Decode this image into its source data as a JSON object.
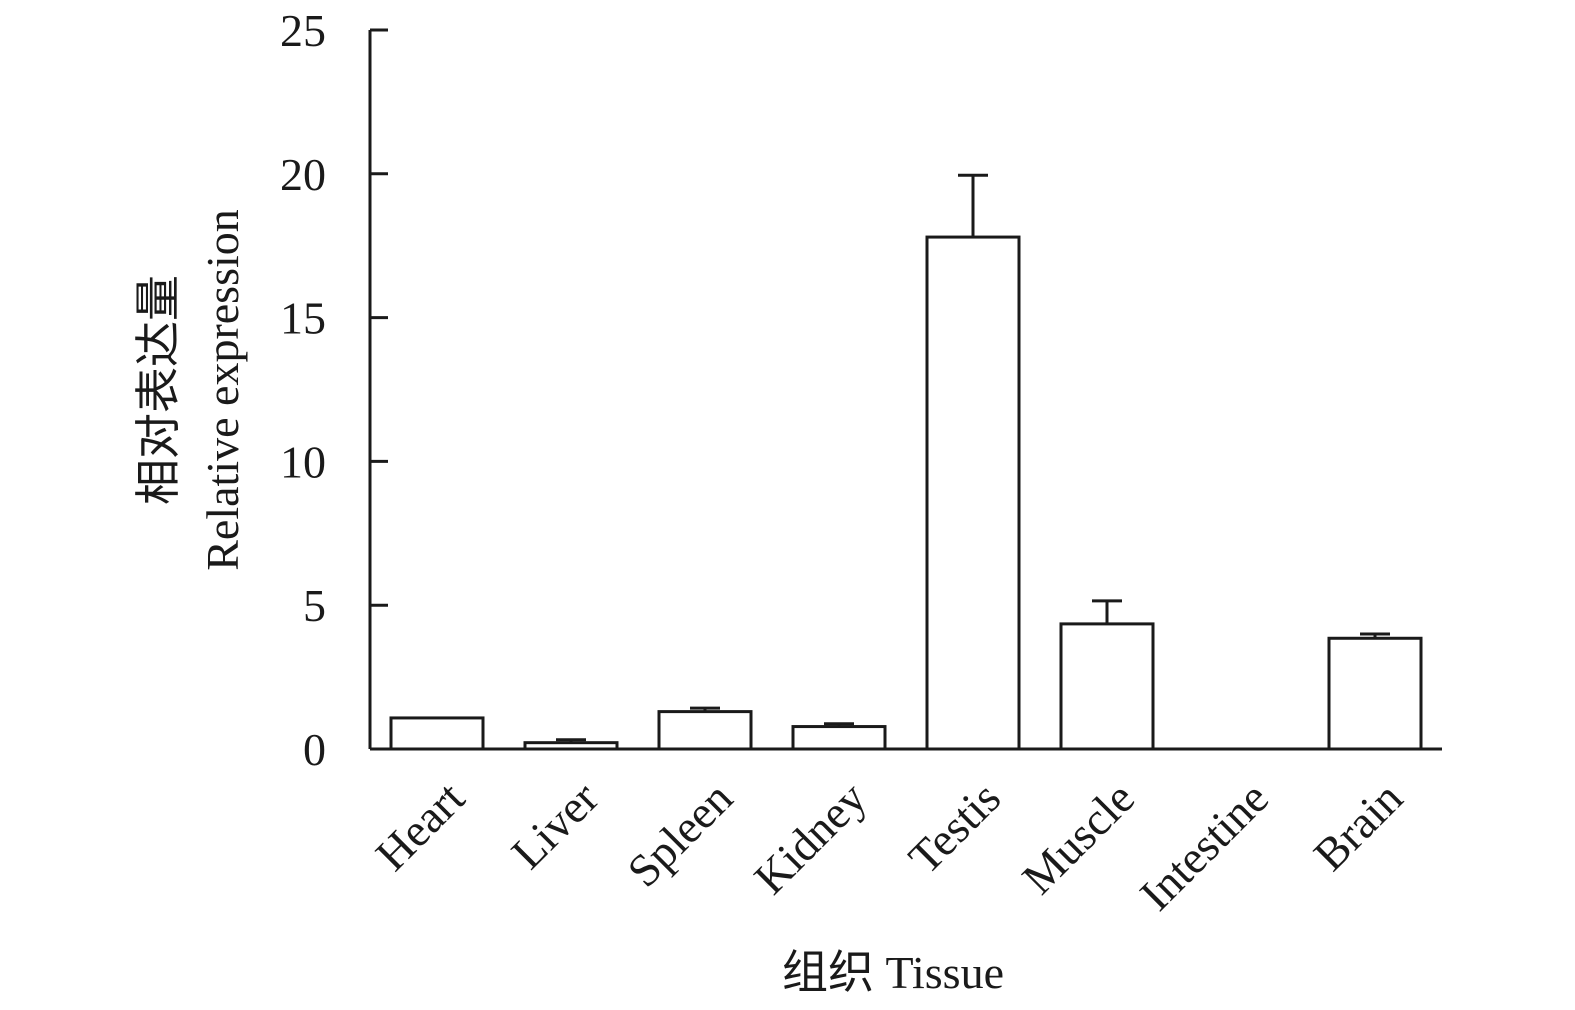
{
  "chart_data": {
    "type": "bar",
    "categories": [
      "Heart",
      "Liver",
      "Spleen",
      "Kidney",
      "Testis",
      "Muscle",
      "Intestine",
      "Brain"
    ],
    "values": [
      1.08,
      0.22,
      1.3,
      0.78,
      17.8,
      4.35,
      0,
      3.85
    ],
    "errors": [
      0,
      0.1,
      0.12,
      0.1,
      2.15,
      0.8,
      0,
      0.15
    ],
    "ylim": [
      0,
      25
    ],
    "yticks": [
      0,
      5,
      10,
      15,
      20,
      25
    ],
    "ytick_labels": [
      "0",
      "5",
      "10",
      "15",
      "20",
      "25"
    ],
    "ylabel_cn": "相对表达量",
    "ylabel_en": "Relative expression",
    "xlabel": "组织 Tissue",
    "grid": false,
    "bar_fill": "#ffffff",
    "bar_stroke": "#1a1a1a"
  }
}
